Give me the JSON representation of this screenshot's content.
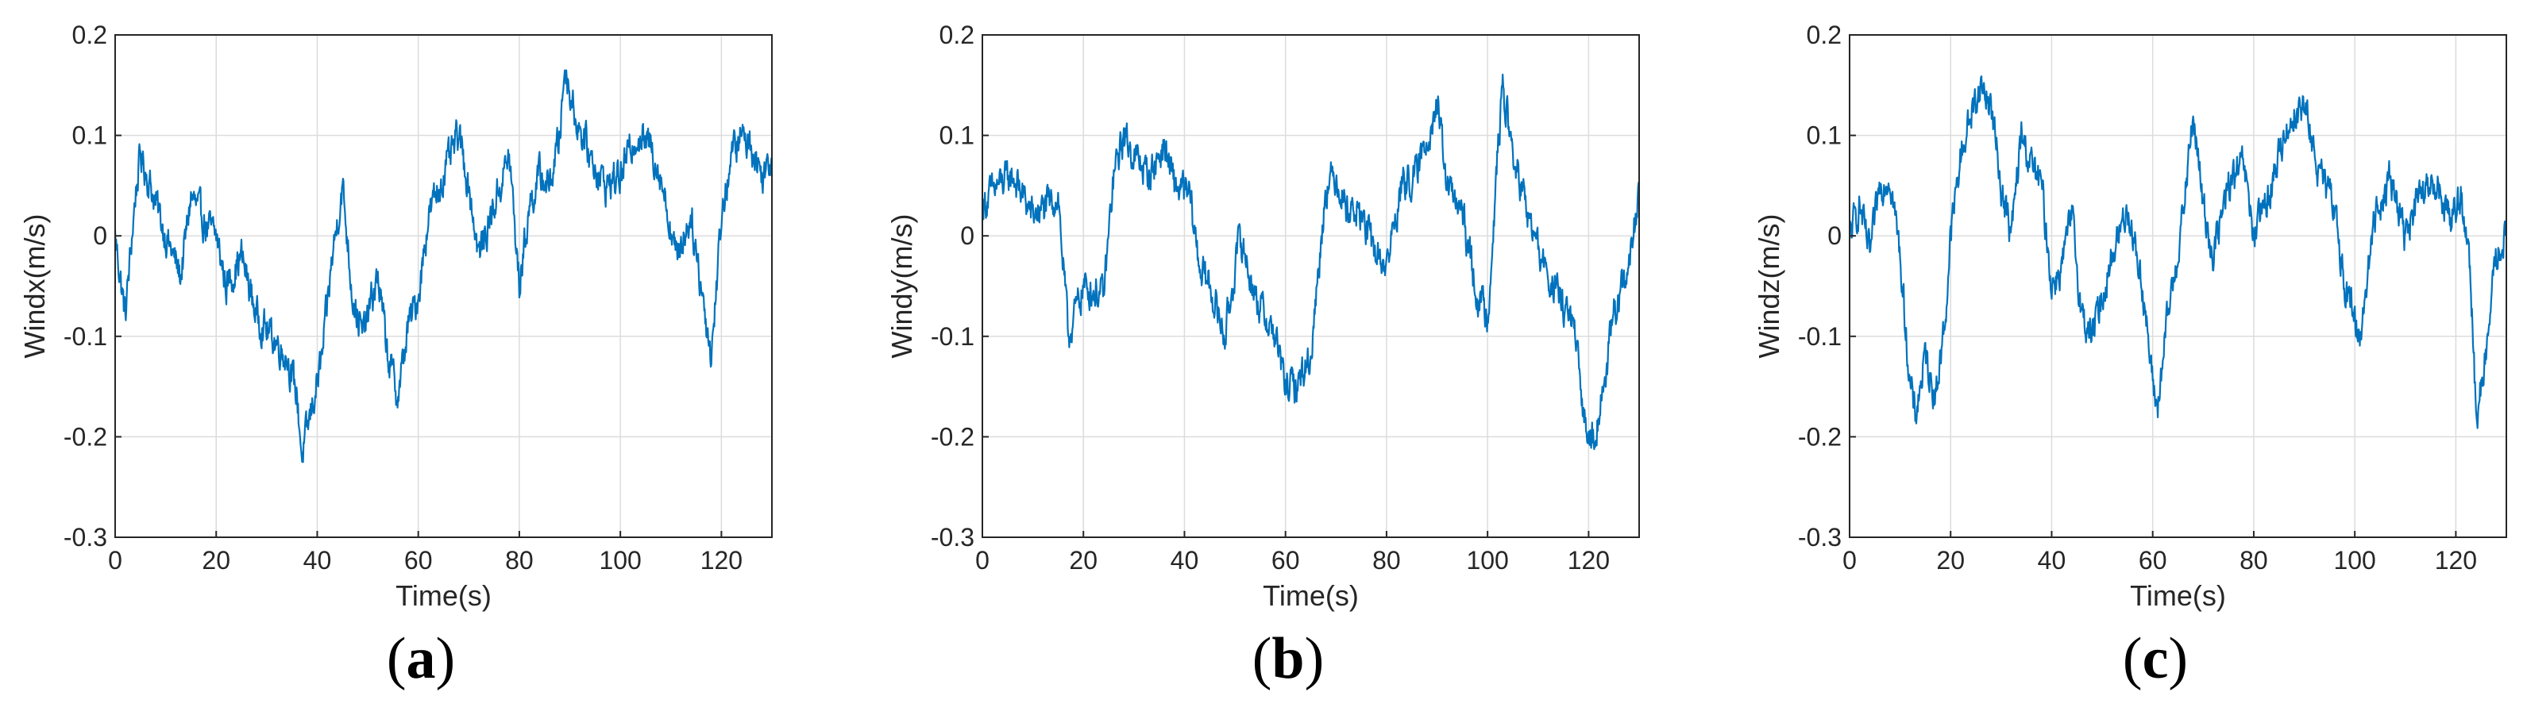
{
  "chart_data": [
    {
      "type": "line",
      "caption_letter": "a",
      "xlabel": "Time(s)",
      "ylabel": "Windx(m/s)",
      "xlim": [
        0,
        130
      ],
      "ylim": [
        -0.3,
        0.2
      ],
      "xticks": [
        0,
        20,
        40,
        60,
        80,
        100,
        120
      ],
      "yticks": [
        -0.3,
        -0.2,
        -0.1,
        0,
        0.1,
        0.2
      ],
      "grid": true,
      "color": "#0072BD",
      "series": [
        {
          "x": [
            0,
            2,
            4,
            5,
            7,
            10,
            13,
            15,
            18,
            20,
            22,
            25,
            28,
            31,
            34,
            36,
            37,
            39,
            41,
            43,
            45,
            47,
            49,
            52,
            54,
            56,
            58,
            60,
            62,
            65,
            68,
            70,
            72,
            75,
            78,
            80,
            82,
            84,
            86,
            88,
            89,
            91,
            94,
            97,
            100,
            103,
            106,
            108,
            111,
            114,
            116,
            118,
            120,
            122,
            124,
            126,
            128,
            130
          ],
          "y": [
            0.0,
            -0.08,
            0.04,
            0.08,
            0.05,
            0.0,
            -0.04,
            0.04,
            0.01,
            0.0,
            -0.05,
            -0.02,
            -0.08,
            -0.1,
            -0.12,
            -0.16,
            -0.22,
            -0.17,
            -0.12,
            -0.02,
            0.05,
            -0.06,
            -0.1,
            -0.04,
            -0.12,
            -0.16,
            -0.09,
            -0.06,
            0.02,
            0.06,
            0.1,
            0.05,
            -0.02,
            0.03,
            0.08,
            -0.05,
            0.03,
            0.06,
            0.05,
            0.1,
            0.17,
            0.12,
            0.08,
            0.05,
            0.06,
            0.1,
            0.09,
            0.06,
            -0.02,
            0.02,
            -0.05,
            -0.12,
            0.02,
            0.08,
            0.1,
            0.09,
            0.06,
            0.08
          ]
        }
      ]
    },
    {
      "type": "line",
      "caption_letter": "b",
      "xlabel": "Time(s)",
      "ylabel": "Windy(m/s)",
      "xlim": [
        0,
        130
      ],
      "ylim": [
        -0.3,
        0.2
      ],
      "xticks": [
        0,
        20,
        40,
        60,
        80,
        100,
        120
      ],
      "yticks": [
        -0.3,
        -0.2,
        -0.1,
        0,
        0.1,
        0.2
      ],
      "grid": true,
      "color": "#0072BD",
      "series": [
        {
          "x": [
            0,
            3,
            6,
            10,
            13,
            15,
            17,
            20,
            24,
            26,
            28,
            30,
            33,
            36,
            38,
            41,
            43,
            45,
            48,
            51,
            54,
            56,
            58,
            60,
            62,
            65,
            68,
            70,
            72,
            75,
            78,
            80,
            83,
            86,
            88,
            90,
            92,
            95,
            98,
            100,
            102,
            103,
            105,
            108,
            111,
            114,
            117,
            119,
            121,
            123,
            125,
            128,
            130
          ],
          "y": [
            0.03,
            0.05,
            0.06,
            0.02,
            0.03,
            0.04,
            -0.1,
            -0.05,
            -0.06,
            0.06,
            0.1,
            0.08,
            0.06,
            0.09,
            0.05,
            0.04,
            -0.03,
            -0.05,
            -0.1,
            0.0,
            -0.06,
            -0.08,
            -0.1,
            -0.15,
            -0.15,
            -0.12,
            0.05,
            0.06,
            0.03,
            0.02,
            -0.02,
            -0.03,
            0.05,
            0.06,
            0.1,
            0.13,
            0.05,
            0.02,
            -0.06,
            -0.08,
            0.08,
            0.15,
            0.08,
            0.02,
            -0.03,
            -0.06,
            -0.09,
            -0.18,
            -0.2,
            -0.15,
            -0.08,
            -0.03,
            0.04
          ]
        }
      ]
    },
    {
      "type": "line",
      "caption_letter": "c",
      "xlabel": "Time(s)",
      "ylabel": "Windz(m/s)",
      "xlim": [
        0,
        130
      ],
      "ylim": [
        -0.3,
        0.2
      ],
      "xticks": [
        0,
        20,
        40,
        60,
        80,
        100,
        120
      ],
      "yticks": [
        -0.3,
        -0.2,
        -0.1,
        0,
        0.1,
        0.2
      ],
      "grid": true,
      "color": "#0072BD",
      "series": [
        {
          "x": [
            0,
            2,
            4,
            6,
            8,
            10,
            12,
            13,
            15,
            17,
            19,
            20,
            22,
            24,
            26,
            28,
            30,
            32,
            34,
            36,
            38,
            40,
            42,
            44,
            46,
            48,
            50,
            52,
            55,
            58,
            60,
            61,
            63,
            66,
            68,
            70,
            72,
            75,
            78,
            80,
            83,
            86,
            88,
            90,
            93,
            96,
            98,
            101,
            104,
            107,
            110,
            113,
            116,
            119,
            121,
            123,
            124,
            126,
            128,
            130
          ],
          "y": [
            0.0,
            0.03,
            -0.02,
            0.05,
            0.06,
            -0.02,
            -0.15,
            -0.18,
            -0.12,
            -0.16,
            -0.08,
            0.0,
            0.08,
            0.12,
            0.15,
            0.13,
            0.05,
            0.0,
            0.1,
            0.07,
            0.05,
            -0.05,
            -0.03,
            0.02,
            -0.08,
            -0.1,
            -0.06,
            -0.02,
            0.03,
            -0.05,
            -0.15,
            -0.17,
            -0.08,
            0.02,
            0.12,
            0.03,
            -0.02,
            0.05,
            0.07,
            0.0,
            0.04,
            0.1,
            0.12,
            0.13,
            0.06,
            0.03,
            -0.05,
            -0.1,
            0.02,
            0.06,
            0.0,
            0.04,
            0.05,
            0.02,
            0.04,
            -0.05,
            -0.18,
            -0.12,
            -0.02,
            0.0
          ]
        }
      ]
    }
  ]
}
